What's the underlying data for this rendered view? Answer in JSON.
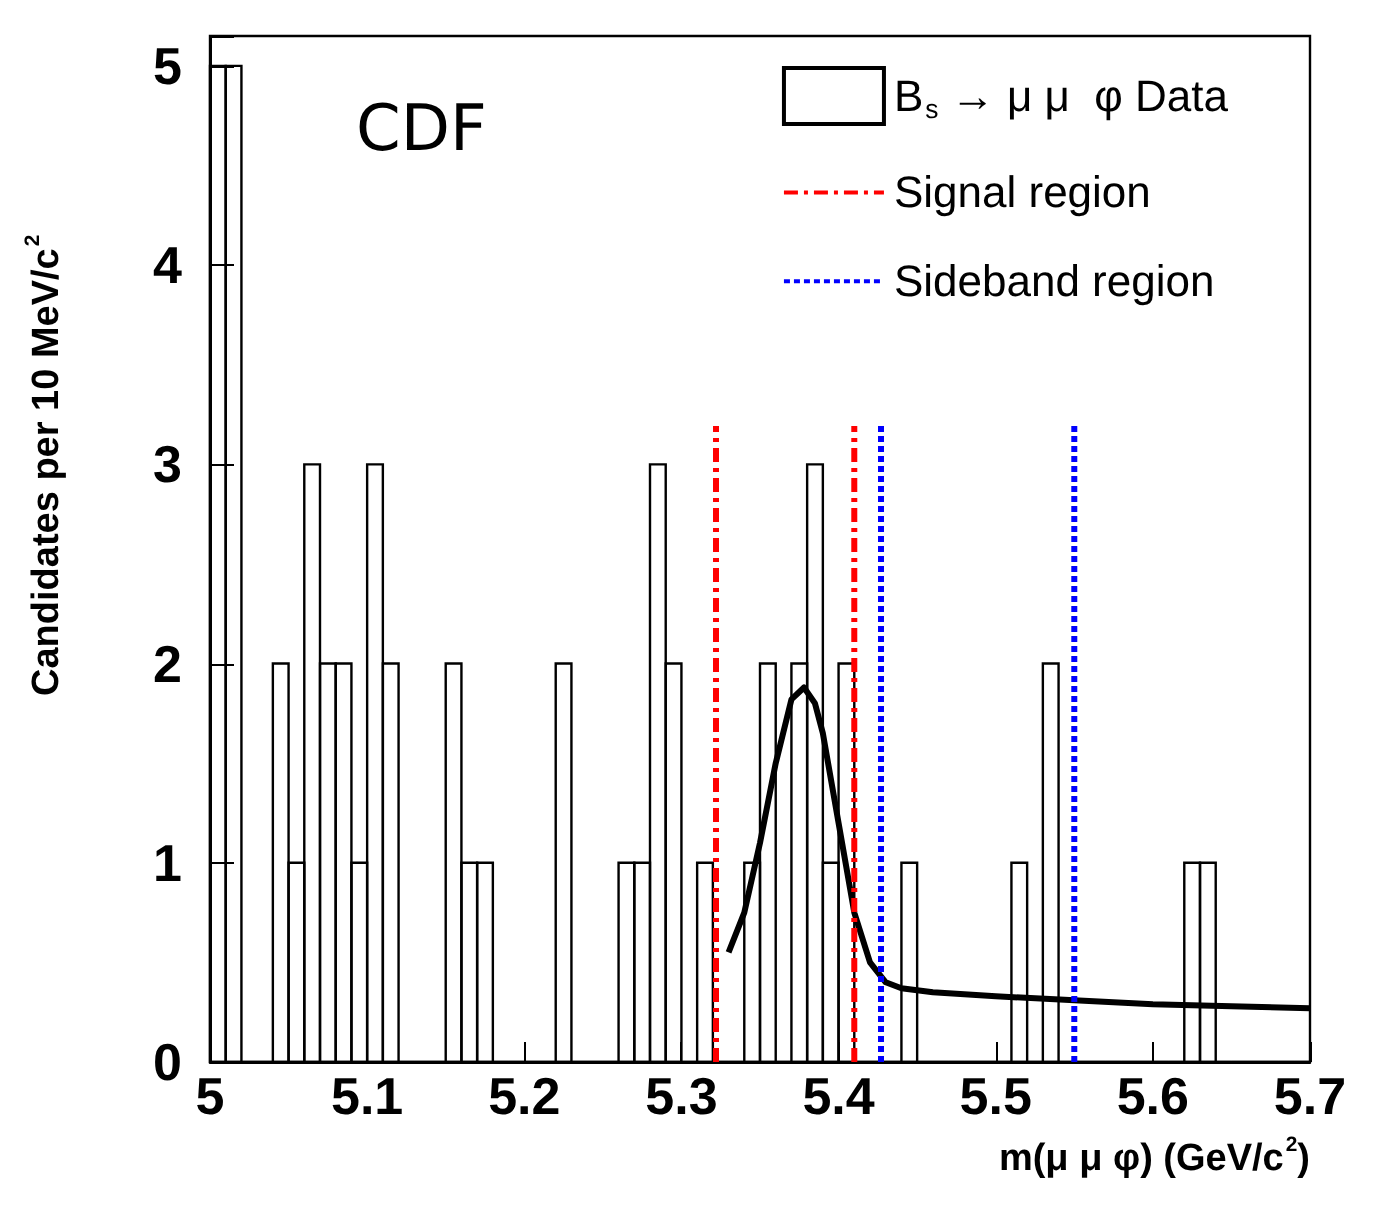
{
  "chart_data": {
    "type": "histogram",
    "xlabel": "m(μ μ φ) (GeV/c$^{2}$)",
    "ylabel": "Candidates per 10 MeV/c$^{2}$",
    "annotations": [
      "CDF"
    ],
    "bins": [
      5.0,
      5.01,
      5.02,
      5.03,
      5.04,
      5.05,
      5.06,
      5.07,
      5.08,
      5.09,
      5.1,
      5.11,
      5.12,
      5.13,
      5.14,
      5.15,
      5.16,
      5.17,
      5.18,
      5.19,
      5.2,
      5.21,
      5.22,
      5.23,
      5.24,
      5.25,
      5.26,
      5.27,
      5.28,
      5.29,
      5.3,
      5.31,
      5.32,
      5.33,
      5.34,
      5.35,
      5.36,
      5.37,
      5.38,
      5.39,
      5.4,
      5.41,
      5.42,
      5.43,
      5.44,
      5.45,
      5.46,
      5.47,
      5.48,
      5.49,
      5.5,
      5.51,
      5.52,
      5.53,
      5.54,
      5.55,
      5.56,
      5.57,
      5.58,
      5.59,
      5.6,
      5.61,
      5.62,
      5.63,
      5.64,
      5.65,
      5.66,
      5.67,
      5.68,
      5.69,
      5.7
    ],
    "series": [
      {
        "name": "B$_{s}$ → μ μ  φ Data",
        "color": "#000000",
        "values": [
          5,
          5,
          0,
          0,
          2,
          1,
          3,
          2,
          2,
          1,
          3,
          2,
          0,
          0,
          0,
          2,
          1,
          1,
          0,
          0,
          0,
          0,
          2,
          0,
          0,
          0,
          1,
          1,
          3,
          2,
          0,
          1,
          0,
          0,
          1,
          2,
          0,
          2,
          3,
          1,
          2,
          0,
          0,
          0,
          1,
          0,
          0,
          0,
          0,
          0,
          0,
          1,
          0,
          2,
          0,
          0,
          0,
          0,
          0,
          0,
          0,
          0,
          1,
          1,
          0,
          0,
          0,
          0,
          0,
          0
        ]
      },
      {
        "type": "line",
        "color": "#000000",
        "x": [
          5.33,
          5.34,
          5.35,
          5.36,
          5.37,
          5.378,
          5.385,
          5.39,
          5.4,
          5.41,
          5.42,
          5.43,
          5.44,
          5.46,
          5.5,
          5.55,
          5.6,
          5.65,
          5.7
        ],
        "values": [
          0.55,
          0.75,
          1.1,
          1.5,
          1.82,
          1.88,
          1.8,
          1.65,
          1.2,
          0.75,
          0.5,
          0.4,
          0.37,
          0.35,
          0.33,
          0.31,
          0.29,
          0.28,
          0.27
        ]
      }
    ],
    "ref_lines": [
      {
        "axis": "x",
        "value": 5.322,
        "label": "Signal region",
        "color": "#ff0000",
        "line_style": "dashed"
      },
      {
        "axis": "x",
        "value": 5.41,
        "color": "#ff0000",
        "line_style": "dashed"
      },
      {
        "axis": "x",
        "value": 5.427,
        "label": "Sideband region",
        "color": "#0000ff",
        "line_style": "dotted"
      },
      {
        "axis": "x",
        "value": 5.55,
        "color": "#0000ff",
        "line_style": "dotted"
      }
    ],
    "xlim": [
      5.0,
      5.7
    ],
    "xticks": [
      5,
      5.1,
      5.2,
      5.3,
      5.4,
      5.5,
      5.6,
      5.7
    ],
    "ylim": [
      0,
      5.15
    ],
    "yticks": [
      0,
      1,
      2,
      3,
      4,
      5
    ],
    "legend": "top right",
    "grid": false
  }
}
